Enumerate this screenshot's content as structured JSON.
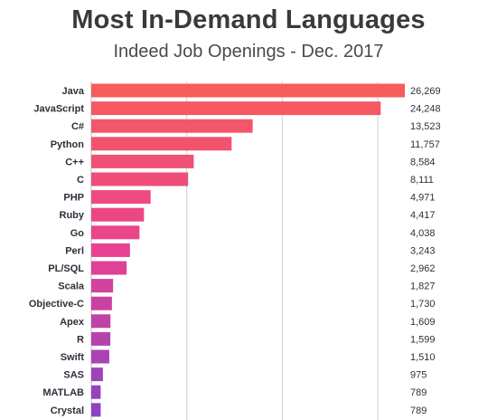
{
  "title": "Most In-Demand Languages",
  "subtitle": "Indeed Job Openings - Dec. 2017",
  "chart_data": {
    "type": "bar",
    "orientation": "horizontal",
    "title": "Most In-Demand Languages",
    "subtitle": "Indeed Job Openings - Dec. 2017",
    "xlabel": "",
    "ylabel": "",
    "xlim": [
      0,
      26269
    ],
    "grid": true,
    "legend": "none",
    "categories": [
      "Java",
      "JavaScript",
      "C#",
      "Python",
      "C++",
      "C",
      "PHP",
      "Ruby",
      "Go",
      "Perl",
      "PL/SQL",
      "Scala",
      "Objective-C",
      "Apex",
      "R",
      "Swift",
      "SAS",
      "MATLAB",
      "Crystal"
    ],
    "values": [
      26269,
      24248,
      13523,
      11757,
      8584,
      8111,
      4971,
      4417,
      4038,
      3243,
      2962,
      1827,
      1730,
      1609,
      1599,
      1510,
      975,
      789,
      789
    ],
    "value_labels": [
      "26,269",
      "24,248",
      "13,523",
      "11,757",
      "8,584",
      "8,111",
      "4,971",
      "4,417",
      "4,038",
      "3,243",
      "2,962",
      "1,827",
      "1,730",
      "1,609",
      "1,599",
      "1,510",
      "975",
      "789",
      "789"
    ],
    "colors": {
      "top": "#f65c5c",
      "middle": "#e84190",
      "bottom": "#8a44c4"
    }
  }
}
